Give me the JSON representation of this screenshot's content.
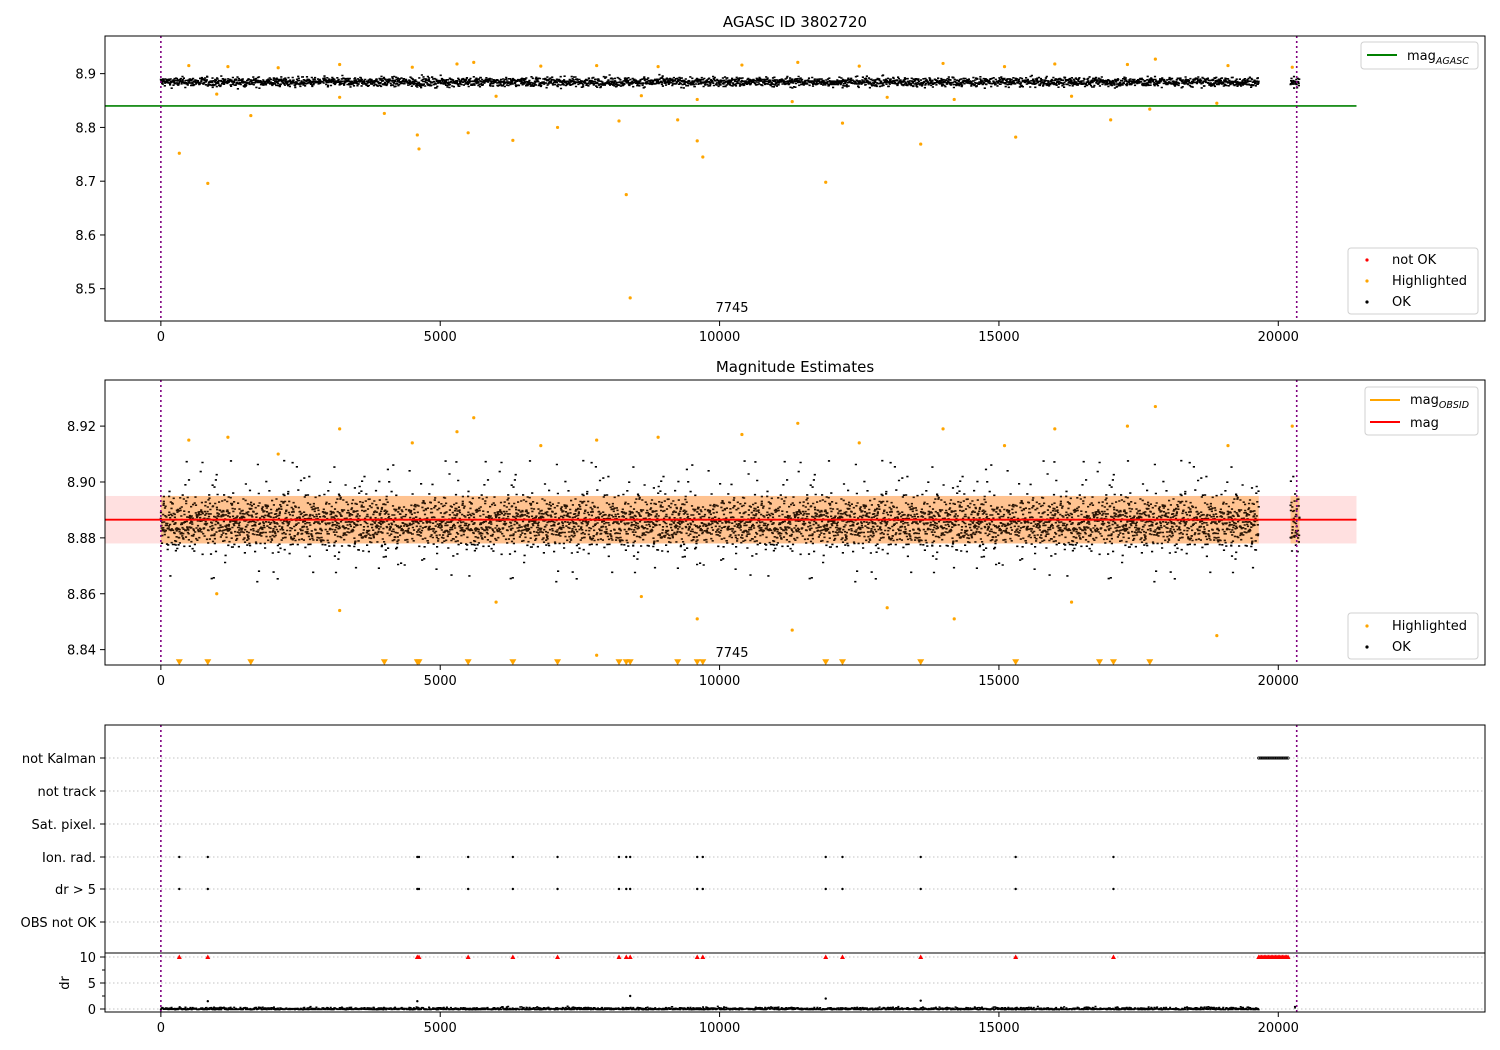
{
  "chart_data": [
    {
      "type": "scatter",
      "title": "AGASC ID 3802720",
      "xlim": [
        -1000,
        23700
      ],
      "ylim": [
        8.44,
        8.97
      ],
      "x_ticks": [
        0,
        5000,
        10000,
        15000,
        20000
      ],
      "x_tick_labels": [
        "0",
        "5000",
        "10000",
        "15000",
        "20000"
      ],
      "y_ticks": [
        8.5,
        8.6,
        8.7,
        8.8,
        8.9
      ],
      "y_tick_labels": [
        "8.5",
        "8.6",
        "8.7",
        "8.8",
        "8.9"
      ],
      "annotation": "7745",
      "obs_boundaries": [
        0,
        20330
      ],
      "reference_line": {
        "name": "mag_AGASC",
        "label_main": "mag",
        "label_sub": "AGASC",
        "y": 8.84,
        "x_end": 21400,
        "color": "#008000"
      },
      "ok_band": {
        "center": 8.886,
        "halfwidth": 0.008,
        "x_ranges": [
          [
            0,
            19650
          ],
          [
            20220,
            20380
          ]
        ],
        "color": "#000000"
      },
      "series": [
        {
          "name": "not OK",
          "color": "#ff0000",
          "points": []
        },
        {
          "name": "Highlighted",
          "color": "#ffa500",
          "points": [
            [
              330,
              8.752
            ],
            [
              840,
              8.696
            ],
            [
              1610,
              8.822
            ],
            [
              4000,
              8.826
            ],
            [
              4590,
              8.786
            ],
            [
              4620,
              8.76
            ],
            [
              5500,
              8.79
            ],
            [
              6300,
              8.776
            ],
            [
              7100,
              8.8
            ],
            [
              8200,
              8.812
            ],
            [
              8330,
              8.675
            ],
            [
              8400,
              8.483
            ],
            [
              9250,
              8.814
            ],
            [
              9600,
              8.775
            ],
            [
              9700,
              8.745
            ],
            [
              11900,
              8.698
            ],
            [
              12200,
              8.808
            ],
            [
              13600,
              8.769
            ],
            [
              15300,
              8.782
            ],
            [
              17000,
              8.814
            ],
            [
              17700,
              8.834
            ],
            [
              500,
              8.915
            ],
            [
              1200,
              8.913
            ],
            [
              2100,
              8.911
            ],
            [
              3200,
              8.917
            ],
            [
              4500,
              8.912
            ],
            [
              5300,
              8.918
            ],
            [
              5600,
              8.921
            ],
            [
              6800,
              8.914
            ],
            [
              7800,
              8.915
            ],
            [
              8900,
              8.913
            ],
            [
              10400,
              8.916
            ],
            [
              11400,
              8.921
            ],
            [
              12500,
              8.914
            ],
            [
              14000,
              8.919
            ],
            [
              15100,
              8.913
            ],
            [
              16000,
              8.918
            ],
            [
              17300,
              8.917
            ],
            [
              17800,
              8.927
            ],
            [
              19100,
              8.915
            ],
            [
              20250,
              8.912
            ],
            [
              3200,
              8.856
            ],
            [
              6000,
              8.858
            ],
            [
              8600,
              8.859
            ],
            [
              9600,
              8.852
            ],
            [
              11300,
              8.848
            ],
            [
              14200,
              8.852
            ],
            [
              16300,
              8.858
            ],
            [
              18900,
              8.845
            ],
            [
              1000,
              8.862
            ],
            [
              13000,
              8.856
            ]
          ]
        },
        {
          "name": "OK",
          "color": "#000000",
          "points": []
        }
      ],
      "legend_top": {
        "position": "upper right",
        "entries": [
          "mag_AGASC"
        ]
      },
      "legend_bottom": {
        "position": "lower right",
        "entries": [
          "not OK",
          "Highlighted",
          "OK"
        ]
      }
    },
    {
      "type": "scatter",
      "title": "Magnitude Estimates",
      "xlim": [
        -1000,
        23700
      ],
      "ylim": [
        8.8345,
        8.9365
      ],
      "x_ticks": [
        0,
        5000,
        10000,
        15000,
        20000
      ],
      "x_tick_labels": [
        "0",
        "5000",
        "10000",
        "15000",
        "20000"
      ],
      "y_ticks": [
        8.84,
        8.86,
        8.88,
        8.9,
        8.92
      ],
      "y_tick_labels": [
        "8.84",
        "8.86",
        "8.88",
        "8.90",
        "8.92"
      ],
      "annotation": "7745",
      "obs_boundaries": [
        0,
        20330
      ],
      "mean_line": {
        "name": "mag",
        "y": 8.8865,
        "x_end": 21400,
        "color": "#ff0000"
      },
      "mean_band": {
        "y_low": 8.878,
        "y_high": 8.895,
        "x_end": 21400,
        "color": "#ff0000"
      },
      "obsid_band": {
        "name": "mag_OBSID",
        "label_main": "mag",
        "label_sub": "OBSID",
        "y_low": 8.878,
        "y_high": 8.895,
        "x_ranges": [
          [
            0,
            19650
          ],
          [
            20220,
            20380
          ]
        ],
        "color": "#ffa500"
      },
      "ok_band": {
        "center": 8.886,
        "halfwidth": 0.008,
        "outer_halfwidth": 0.022,
        "x_ranges": [
          [
            0,
            19650
          ],
          [
            20220,
            20380
          ]
        ],
        "color": "#000000"
      },
      "series": [
        {
          "name": "Highlighted",
          "color": "#ffa500",
          "points": [
            [
              500,
              8.915
            ],
            [
              1200,
              8.916
            ],
            [
              2100,
              8.91
            ],
            [
              3200,
              8.919
            ],
            [
              4500,
              8.914
            ],
            [
              5300,
              8.918
            ],
            [
              5600,
              8.923
            ],
            [
              6800,
              8.913
            ],
            [
              7800,
              8.915
            ],
            [
              8900,
              8.916
            ],
            [
              10400,
              8.917
            ],
            [
              11400,
              8.921
            ],
            [
              12500,
              8.914
            ],
            [
              14000,
              8.919
            ],
            [
              15100,
              8.913
            ],
            [
              16000,
              8.919
            ],
            [
              17300,
              8.92
            ],
            [
              17800,
              8.927
            ],
            [
              19100,
              8.913
            ],
            [
              20250,
              8.92
            ],
            [
              3200,
              8.854
            ],
            [
              6000,
              8.857
            ],
            [
              8600,
              8.859
            ],
            [
              9600,
              8.851
            ],
            [
              11300,
              8.847
            ],
            [
              14200,
              8.851
            ],
            [
              16300,
              8.857
            ],
            [
              18900,
              8.845
            ],
            [
              1000,
              8.86
            ],
            [
              13000,
              8.855
            ],
            [
              7800,
              8.838
            ]
          ]
        },
        {
          "name": "Highlighted (below axis)",
          "color": "#ffa500",
          "marker": "triangle-down",
          "y": 8.8355,
          "x": [
            330,
            840,
            1610,
            4000,
            4590,
            4620,
            5500,
            6300,
            7100,
            8200,
            8330,
            8400,
            9250,
            9600,
            9700,
            11900,
            12200,
            13600,
            15300,
            16800,
            17050,
            17700
          ]
        },
        {
          "name": "OK",
          "color": "#000000",
          "points": []
        }
      ],
      "legend_top": {
        "position": "upper right",
        "entries": [
          "mag_OBSID",
          "mag"
        ]
      },
      "legend_bottom": {
        "position": "lower right",
        "entries": [
          "Highlighted",
          "OK"
        ]
      }
    },
    {
      "type": "scatter",
      "title": "",
      "xlim": [
        -1000,
        23700
      ],
      "x_ticks": [
        0,
        5000,
        10000,
        15000,
        20000
      ],
      "x_tick_labels": [
        "0",
        "5000",
        "10000",
        "15000",
        "20000"
      ],
      "obs_boundaries": [
        0,
        20330
      ],
      "flag_rows": [
        "not Kalman",
        "not track",
        "Sat. pixel.",
        "Ion. rad.",
        "dr > 5",
        "OBS not OK"
      ],
      "flag_points": {
        "not Kalman": {
          "x_range": [
            19650,
            20180
          ]
        },
        "not track": {
          "x": []
        },
        "Sat. pixel.": {
          "x": []
        },
        "Ion. rad.": {
          "x": [
            330,
            840,
            4590,
            4620,
            5500,
            6300,
            7100,
            8200,
            8330,
            8400,
            9600,
            9700,
            11900,
            12200,
            13600,
            15300,
            17050
          ]
        },
        "dr > 5": {
          "x": [
            330,
            840,
            4590,
            4620,
            5500,
            6300,
            7100,
            8200,
            8330,
            8400,
            9600,
            9700,
            11900,
            12200,
            13600,
            15300,
            17050
          ]
        },
        "OBS not OK": {
          "x": []
        }
      },
      "dr_panel": {
        "ylabel": "dr",
        "y_ticks": [
          0,
          5,
          10
        ],
        "y_tick_labels": [
          "0",
          "5",
          "10"
        ],
        "ylim": [
          -0.3,
          10.3
        ],
        "baseline_range": [
          0,
          19650
        ],
        "outliers": [
          [
            840,
            1.5
          ],
          [
            4590,
            1.5
          ],
          [
            8400,
            2.5
          ],
          [
            11900,
            2.0
          ],
          [
            13600,
            1.6
          ],
          [
            20300,
            0.4
          ]
        ],
        "capped": {
          "y": 10,
          "color": "#ff0000",
          "x": [
            330,
            840,
            4590,
            4620,
            5500,
            6300,
            7100,
            8200,
            8330,
            8400,
            9600,
            9700,
            11900,
            12200,
            13600,
            15300,
            17050
          ],
          "x_range": [
            19650,
            20180
          ]
        }
      }
    }
  ]
}
